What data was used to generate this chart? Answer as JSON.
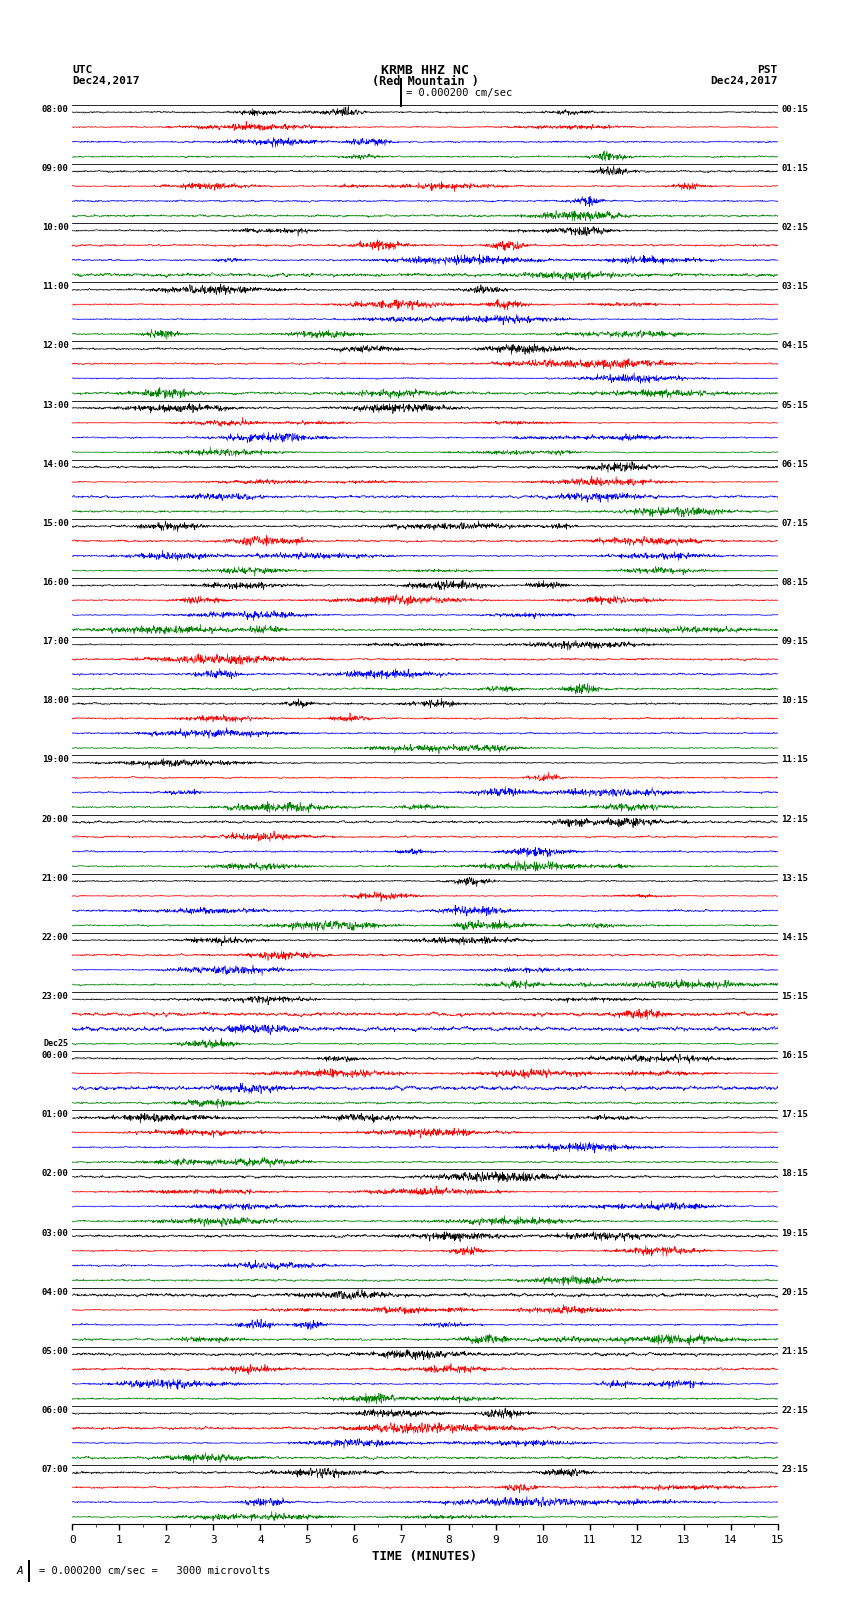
{
  "title_line1": "KRMB HHZ NC",
  "title_line2": "(Red Mountain )",
  "scale_text": "= 0.000200 cm/sec",
  "bottom_scale_text": "= 0.000200 cm/sec =   3000 microvolts",
  "utc_label": "UTC",
  "utc_date": "Dec24,2017",
  "pst_label": "PST",
  "pst_date": "Dec24,2017",
  "xlabel": "TIME (MINUTES)",
  "xticks": [
    0,
    1,
    2,
    3,
    4,
    5,
    6,
    7,
    8,
    9,
    10,
    11,
    12,
    13,
    14,
    15
  ],
  "left_times_utc": [
    "08:00",
    "09:00",
    "10:00",
    "11:00",
    "12:00",
    "13:00",
    "14:00",
    "15:00",
    "16:00",
    "17:00",
    "18:00",
    "19:00",
    "20:00",
    "21:00",
    "22:00",
    "23:00",
    "Dec25\n00:00",
    "01:00",
    "02:00",
    "03:00",
    "04:00",
    "05:00",
    "06:00",
    "07:00"
  ],
  "right_times_pst": [
    "00:15",
    "01:15",
    "02:15",
    "03:15",
    "04:15",
    "05:15",
    "06:15",
    "07:15",
    "08:15",
    "09:15",
    "10:15",
    "11:15",
    "12:15",
    "13:15",
    "14:15",
    "15:15",
    "16:15",
    "17:15",
    "18:15",
    "19:15",
    "20:15",
    "21:15",
    "22:15",
    "23:15"
  ],
  "n_rows": 24,
  "traces_per_row": 4,
  "colors": [
    "black",
    "red",
    "blue",
    "green"
  ],
  "bg_color": "white",
  "amplitude": 0.38,
  "n_points": 2000,
  "fig_width": 8.5,
  "fig_height": 16.13,
  "dpi": 100
}
